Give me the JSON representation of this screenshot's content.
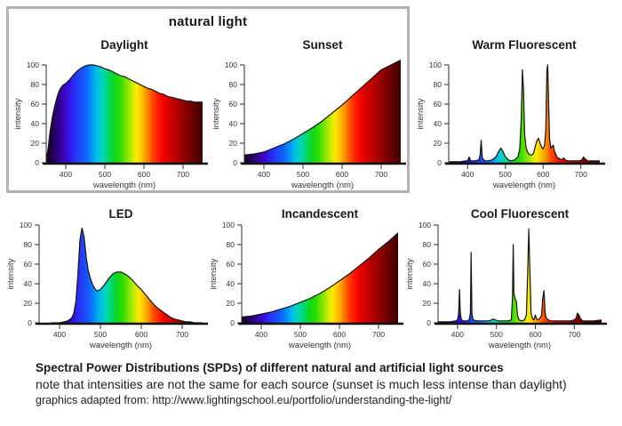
{
  "page": {
    "group_box": {
      "label": "natural light",
      "border_color": "#b2b2b2"
    }
  },
  "caption": {
    "title": "Spectral Power Distributions (SPDs) of different natural and artificial light sources",
    "note": "note that intensities are not the same for each source (sunset is much less intense than daylight)",
    "source": "graphics adapted from: http://www.lightingschool.eu/portfolio/understanding-the-light/"
  },
  "spectrum_gradient": [
    {
      "wl": 350,
      "color": "#140024"
    },
    {
      "wl": 370,
      "color": "#26005e"
    },
    {
      "wl": 390,
      "color": "#3404a6"
    },
    {
      "wl": 405,
      "color": "#3a0adb"
    },
    {
      "wl": 420,
      "color": "#2b2bf2"
    },
    {
      "wl": 435,
      "color": "#1e46fa"
    },
    {
      "wl": 450,
      "color": "#1460ff"
    },
    {
      "wl": 465,
      "color": "#0090f5"
    },
    {
      "wl": 480,
      "color": "#00c0e8"
    },
    {
      "wl": 495,
      "color": "#00d8b4"
    },
    {
      "wl": 510,
      "color": "#00d866"
    },
    {
      "wl": 525,
      "color": "#0ed816"
    },
    {
      "wl": 540,
      "color": "#32dc00"
    },
    {
      "wl": 555,
      "color": "#7ce400"
    },
    {
      "wl": 570,
      "color": "#c6ec00"
    },
    {
      "wl": 582,
      "color": "#ffea00"
    },
    {
      "wl": 595,
      "color": "#ffc000"
    },
    {
      "wl": 608,
      "color": "#ff8c00"
    },
    {
      "wl": 620,
      "color": "#ff5000"
    },
    {
      "wl": 635,
      "color": "#ff1e00"
    },
    {
      "wl": 650,
      "color": "#ee0000"
    },
    {
      "wl": 670,
      "color": "#cc0000"
    },
    {
      "wl": 695,
      "color": "#a00000"
    },
    {
      "wl": 720,
      "color": "#720000"
    },
    {
      "wl": 750,
      "color": "#3c0000"
    },
    {
      "wl": 770,
      "color": "#300000"
    }
  ],
  "chart_data": [
    {
      "id": "daylight",
      "type": "area",
      "title": "Daylight",
      "xlabel": "wavelength (nm)",
      "ylabel": "intensity",
      "xlim": [
        350,
        750
      ],
      "ylim": [
        0,
        100
      ],
      "x_ticks": [
        400,
        500,
        600,
        700
      ],
      "y_ticks": [
        0,
        20,
        40,
        60,
        80,
        100
      ],
      "points": [
        [
          350,
          2
        ],
        [
          355,
          15
        ],
        [
          360,
          32
        ],
        [
          365,
          45
        ],
        [
          370,
          55
        ],
        [
          375,
          63
        ],
        [
          380,
          70
        ],
        [
          385,
          75
        ],
        [
          390,
          78
        ],
        [
          395,
          80
        ],
        [
          400,
          81
        ],
        [
          405,
          83
        ],
        [
          410,
          85
        ],
        [
          420,
          90
        ],
        [
          430,
          94
        ],
        [
          440,
          97
        ],
        [
          450,
          99
        ],
        [
          460,
          100
        ],
        [
          470,
          100
        ],
        [
          480,
          99
        ],
        [
          490,
          98
        ],
        [
          500,
          96
        ],
        [
          510,
          95
        ],
        [
          520,
          93
        ],
        [
          530,
          91
        ],
        [
          540,
          89
        ],
        [
          550,
          88
        ],
        [
          560,
          86
        ],
        [
          570,
          84
        ],
        [
          580,
          82
        ],
        [
          590,
          80
        ],
        [
          600,
          78
        ],
        [
          610,
          76
        ],
        [
          620,
          75
        ],
        [
          630,
          73
        ],
        [
          640,
          71
        ],
        [
          650,
          70
        ],
        [
          660,
          68
        ],
        [
          670,
          67
        ],
        [
          680,
          66
        ],
        [
          690,
          65
        ],
        [
          700,
          64
        ],
        [
          710,
          63
        ],
        [
          720,
          63
        ],
        [
          730,
          62
        ],
        [
          740,
          62
        ],
        [
          750,
          62
        ]
      ]
    },
    {
      "id": "sunset",
      "type": "area",
      "title": "Sunset",
      "xlabel": "wavelength (nm)",
      "ylabel": "intensity",
      "xlim": [
        350,
        750
      ],
      "ylim": [
        0,
        100
      ],
      "x_ticks": [
        400,
        500,
        600,
        700
      ],
      "y_ticks": [
        0,
        20,
        40,
        60,
        80,
        100
      ],
      "points": [
        [
          350,
          8
        ],
        [
          375,
          9
        ],
        [
          400,
          11
        ],
        [
          425,
          15
        ],
        [
          450,
          19
        ],
        [
          475,
          24
        ],
        [
          500,
          30
        ],
        [
          525,
          36
        ],
        [
          550,
          43
        ],
        [
          575,
          51
        ],
        [
          600,
          59
        ],
        [
          625,
          68
        ],
        [
          650,
          77
        ],
        [
          675,
          86
        ],
        [
          700,
          95
        ],
        [
          725,
          100
        ],
        [
          750,
          105
        ]
      ]
    },
    {
      "id": "warm-fluorescent",
      "type": "area",
      "title": "Warm Fluorescent",
      "xlabel": "wavelength (nm)",
      "ylabel": "intensity",
      "xlim": [
        350,
        750
      ],
      "ylim": [
        0,
        100
      ],
      "x_ticks": [
        400,
        500,
        600,
        700
      ],
      "y_ticks": [
        0,
        20,
        40,
        60,
        80,
        100
      ],
      "points": [
        [
          350,
          1
        ],
        [
          380,
          1
        ],
        [
          395,
          2
        ],
        [
          400,
          2
        ],
        [
          404,
          6
        ],
        [
          408,
          2
        ],
        [
          420,
          2
        ],
        [
          430,
          3
        ],
        [
          433,
          8
        ],
        [
          436,
          23
        ],
        [
          439,
          5
        ],
        [
          445,
          2
        ],
        [
          455,
          2
        ],
        [
          465,
          3
        ],
        [
          475,
          6
        ],
        [
          483,
          12
        ],
        [
          488,
          15
        ],
        [
          493,
          12
        ],
        [
          500,
          6
        ],
        [
          508,
          3
        ],
        [
          515,
          2
        ],
        [
          525,
          3
        ],
        [
          533,
          6
        ],
        [
          538,
          14
        ],
        [
          542,
          45
        ],
        [
          545,
          95
        ],
        [
          548,
          75
        ],
        [
          551,
          30
        ],
        [
          555,
          15
        ],
        [
          560,
          10
        ],
        [
          565,
          8
        ],
        [
          570,
          8
        ],
        [
          575,
          10
        ],
        [
          580,
          18
        ],
        [
          584,
          23
        ],
        [
          588,
          25
        ],
        [
          592,
          20
        ],
        [
          596,
          16
        ],
        [
          600,
          14
        ],
        [
          604,
          18
        ],
        [
          607,
          33
        ],
        [
          610,
          95
        ],
        [
          612,
          100
        ],
        [
          614,
          70
        ],
        [
          617,
          25
        ],
        [
          620,
          15
        ],
        [
          624,
          17
        ],
        [
          627,
          18
        ],
        [
          630,
          12
        ],
        [
          634,
          8
        ],
        [
          638,
          5
        ],
        [
          645,
          4
        ],
        [
          650,
          3
        ],
        [
          654,
          5
        ],
        [
          658,
          3
        ],
        [
          665,
          2
        ],
        [
          675,
          2
        ],
        [
          685,
          2
        ],
        [
          695,
          2
        ],
        [
          703,
          3
        ],
        [
          707,
          6
        ],
        [
          711,
          4
        ],
        [
          718,
          2
        ],
        [
          730,
          2
        ],
        [
          750,
          2
        ]
      ]
    },
    {
      "id": "led",
      "type": "area",
      "title": "LED",
      "xlabel": "wavelength (nm)",
      "ylabel": "intensity",
      "xlim": [
        350,
        750
      ],
      "ylim": [
        0,
        100
      ],
      "x_ticks": [
        400,
        500,
        600,
        700
      ],
      "y_ticks": [
        0,
        20,
        40,
        60,
        80,
        100
      ],
      "points": [
        [
          380,
          0
        ],
        [
          400,
          0
        ],
        [
          410,
          1
        ],
        [
          420,
          2
        ],
        [
          430,
          5
        ],
        [
          435,
          10
        ],
        [
          440,
          22
        ],
        [
          445,
          50
        ],
        [
          450,
          85
        ],
        [
          455,
          97
        ],
        [
          460,
          88
        ],
        [
          465,
          68
        ],
        [
          470,
          54
        ],
        [
          475,
          46
        ],
        [
          480,
          40
        ],
        [
          485,
          36
        ],
        [
          490,
          33
        ],
        [
          495,
          33
        ],
        [
          500,
          34
        ],
        [
          510,
          39
        ],
        [
          520,
          45
        ],
        [
          530,
          50
        ],
        [
          540,
          52
        ],
        [
          550,
          52
        ],
        [
          560,
          50
        ],
        [
          570,
          47
        ],
        [
          580,
          43
        ],
        [
          590,
          38
        ],
        [
          600,
          34
        ],
        [
          610,
          29
        ],
        [
          620,
          24
        ],
        [
          630,
          19
        ],
        [
          640,
          15
        ],
        [
          650,
          12
        ],
        [
          660,
          9
        ],
        [
          670,
          6
        ],
        [
          680,
          4
        ],
        [
          690,
          3
        ],
        [
          700,
          2
        ],
        [
          710,
          1
        ],
        [
          720,
          1
        ],
        [
          730,
          0
        ],
        [
          750,
          0
        ]
      ]
    },
    {
      "id": "incandescent",
      "type": "area",
      "title": "Incandescent",
      "xlabel": "wavelength (nm)",
      "ylabel": "intensity",
      "xlim": [
        350,
        750
      ],
      "ylim": [
        0,
        100
      ],
      "x_ticks": [
        400,
        500,
        600,
        700
      ],
      "y_ticks": [
        0,
        20,
        40,
        60,
        80,
        100
      ],
      "points": [
        [
          350,
          6
        ],
        [
          375,
          7
        ],
        [
          400,
          9
        ],
        [
          425,
          11
        ],
        [
          450,
          14
        ],
        [
          475,
          17
        ],
        [
          500,
          21
        ],
        [
          525,
          25
        ],
        [
          550,
          30
        ],
        [
          575,
          36
        ],
        [
          600,
          43
        ],
        [
          625,
          50
        ],
        [
          650,
          58
        ],
        [
          675,
          66
        ],
        [
          700,
          75
        ],
        [
          725,
          83
        ],
        [
          750,
          92
        ]
      ]
    },
    {
      "id": "cool-fluorescent",
      "type": "area",
      "title": "Cool Fluorescent",
      "xlabel": "wavelength (nm)",
      "ylabel": "intensity",
      "xlim": [
        350,
        770
      ],
      "ylim": [
        0,
        100
      ],
      "x_ticks": [
        400,
        500,
        600,
        700
      ],
      "y_ticks": [
        0,
        20,
        40,
        60,
        80,
        100
      ],
      "points": [
        [
          350,
          1
        ],
        [
          380,
          1
        ],
        [
          395,
          2
        ],
        [
          400,
          3
        ],
        [
          403,
          10
        ],
        [
          405,
          34
        ],
        [
          407,
          10
        ],
        [
          410,
          3
        ],
        [
          415,
          2
        ],
        [
          425,
          2
        ],
        [
          430,
          3
        ],
        [
          433,
          10
        ],
        [
          435,
          72
        ],
        [
          437,
          10
        ],
        [
          440,
          3
        ],
        [
          450,
          2
        ],
        [
          460,
          2
        ],
        [
          470,
          2
        ],
        [
          480,
          2
        ],
        [
          488,
          3
        ],
        [
          492,
          4
        ],
        [
          496,
          3
        ],
        [
          505,
          2
        ],
        [
          520,
          2
        ],
        [
          530,
          2
        ],
        [
          538,
          3
        ],
        [
          541,
          25
        ],
        [
          543,
          80
        ],
        [
          545,
          30
        ],
        [
          548,
          25
        ],
        [
          551,
          22
        ],
        [
          554,
          8
        ],
        [
          558,
          3
        ],
        [
          565,
          2
        ],
        [
          572,
          3
        ],
        [
          577,
          8
        ],
        [
          580,
          50
        ],
        [
          583,
          96
        ],
        [
          586,
          50
        ],
        [
          589,
          10
        ],
        [
          592,
          5
        ],
        [
          596,
          3
        ],
        [
          600,
          8
        ],
        [
          603,
          4
        ],
        [
          607,
          3
        ],
        [
          612,
          5
        ],
        [
          616,
          8
        ],
        [
          619,
          25
        ],
        [
          622,
          33
        ],
        [
          625,
          10
        ],
        [
          628,
          5
        ],
        [
          633,
          3
        ],
        [
          640,
          2
        ],
        [
          650,
          2
        ],
        [
          660,
          2
        ],
        [
          675,
          2
        ],
        [
          690,
          2
        ],
        [
          700,
          3
        ],
        [
          705,
          5
        ],
        [
          708,
          10
        ],
        [
          712,
          8
        ],
        [
          716,
          4
        ],
        [
          722,
          2
        ],
        [
          735,
          2
        ],
        [
          750,
          2
        ],
        [
          770,
          3
        ]
      ]
    }
  ]
}
